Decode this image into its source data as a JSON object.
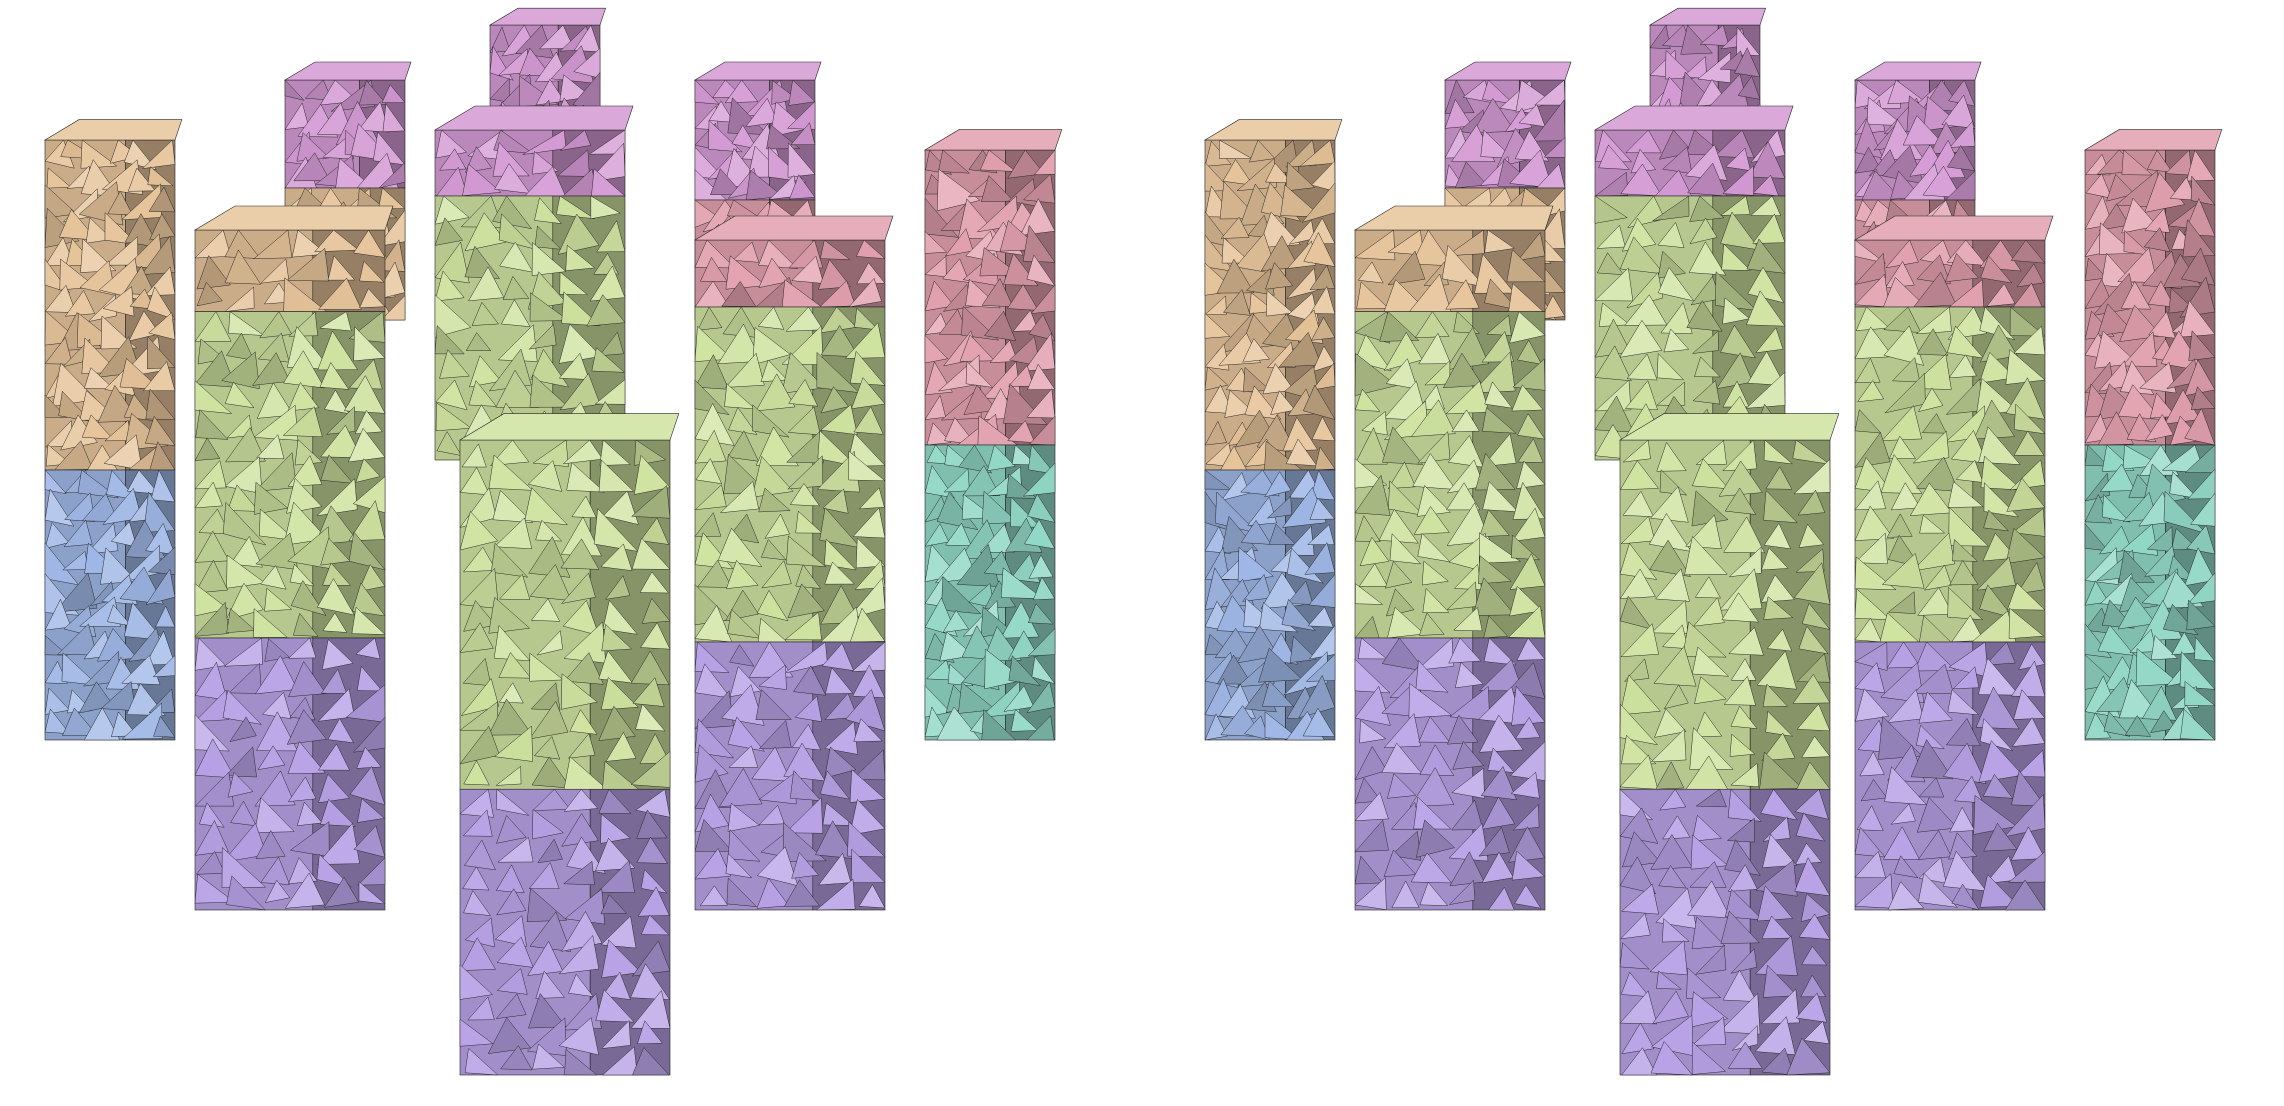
{
  "figure": {
    "panels": [
      {
        "id": "left",
        "view": "mesh-view-a"
      },
      {
        "id": "right",
        "view": "mesh-view-b"
      }
    ],
    "partition_colors": {
      "tan": "#e6c49a",
      "pink": "#e2a0ae",
      "magenta": "#d49ad4",
      "green": "#cfe3a0",
      "blue": "#9fb7e6",
      "purple": "#b8a2e6",
      "teal": "#92d8c6"
    }
  }
}
